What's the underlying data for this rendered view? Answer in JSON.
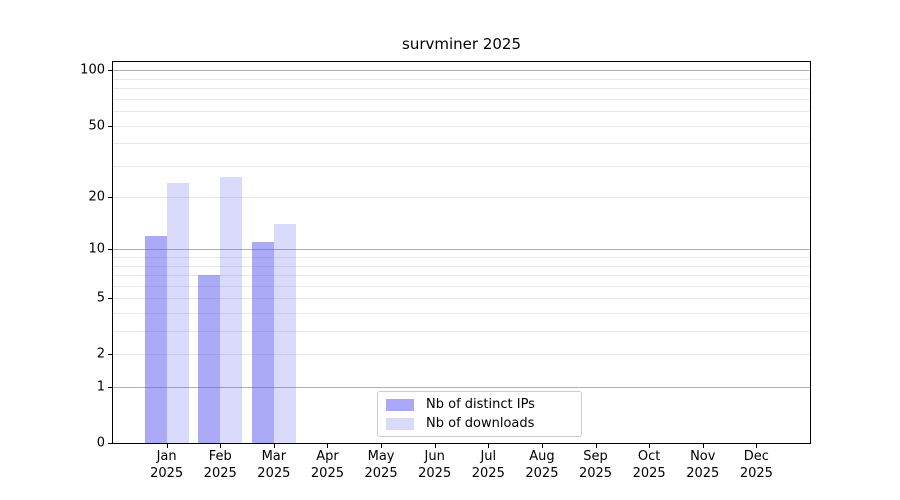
{
  "colors": {
    "ips_bar": "rgba(85,85,240,0.50)",
    "downloads_bar": "rgba(85,85,240,0.22)",
    "ips_swatch": "#a9a9f8",
    "downloads_swatch": "#dadafb",
    "grid_major": "#b0b0b0",
    "grid_minor": "#e8e8e8",
    "spine": "#000000",
    "text": "#000000"
  },
  "chart_data": {
    "type": "bar",
    "title": "survminer 2025",
    "categories": [
      "Jan",
      "Feb",
      "Mar",
      "Apr",
      "May",
      "Jun",
      "Jul",
      "Aug",
      "Sep",
      "Oct",
      "Nov",
      "Dec"
    ],
    "year": "2025",
    "series": [
      {
        "name": "Nb of distinct IPs",
        "color_key": "ips",
        "values": [
          12,
          7,
          11,
          0,
          0,
          0,
          0,
          0,
          0,
          0,
          0,
          0
        ]
      },
      {
        "name": "Nb of downloads",
        "color_key": "downloads",
        "values": [
          24,
          26,
          14,
          0,
          0,
          0,
          0,
          0,
          0,
          0,
          0,
          0
        ]
      }
    ],
    "y_ticks": [
      0,
      1,
      2,
      5,
      10,
      20,
      50,
      100
    ],
    "grid_major_at": [
      1,
      10,
      100
    ],
    "grid_minor_at": [
      2,
      3,
      4,
      5,
      6,
      7,
      8,
      9,
      20,
      30,
      40,
      50,
      60,
      70,
      80,
      90
    ],
    "ylim": [
      0,
      110
    ],
    "y_scale": "log1p",
    "grid": "horizontal",
    "legend_position": "lower center",
    "xlabel": "",
    "ylabel": ""
  }
}
